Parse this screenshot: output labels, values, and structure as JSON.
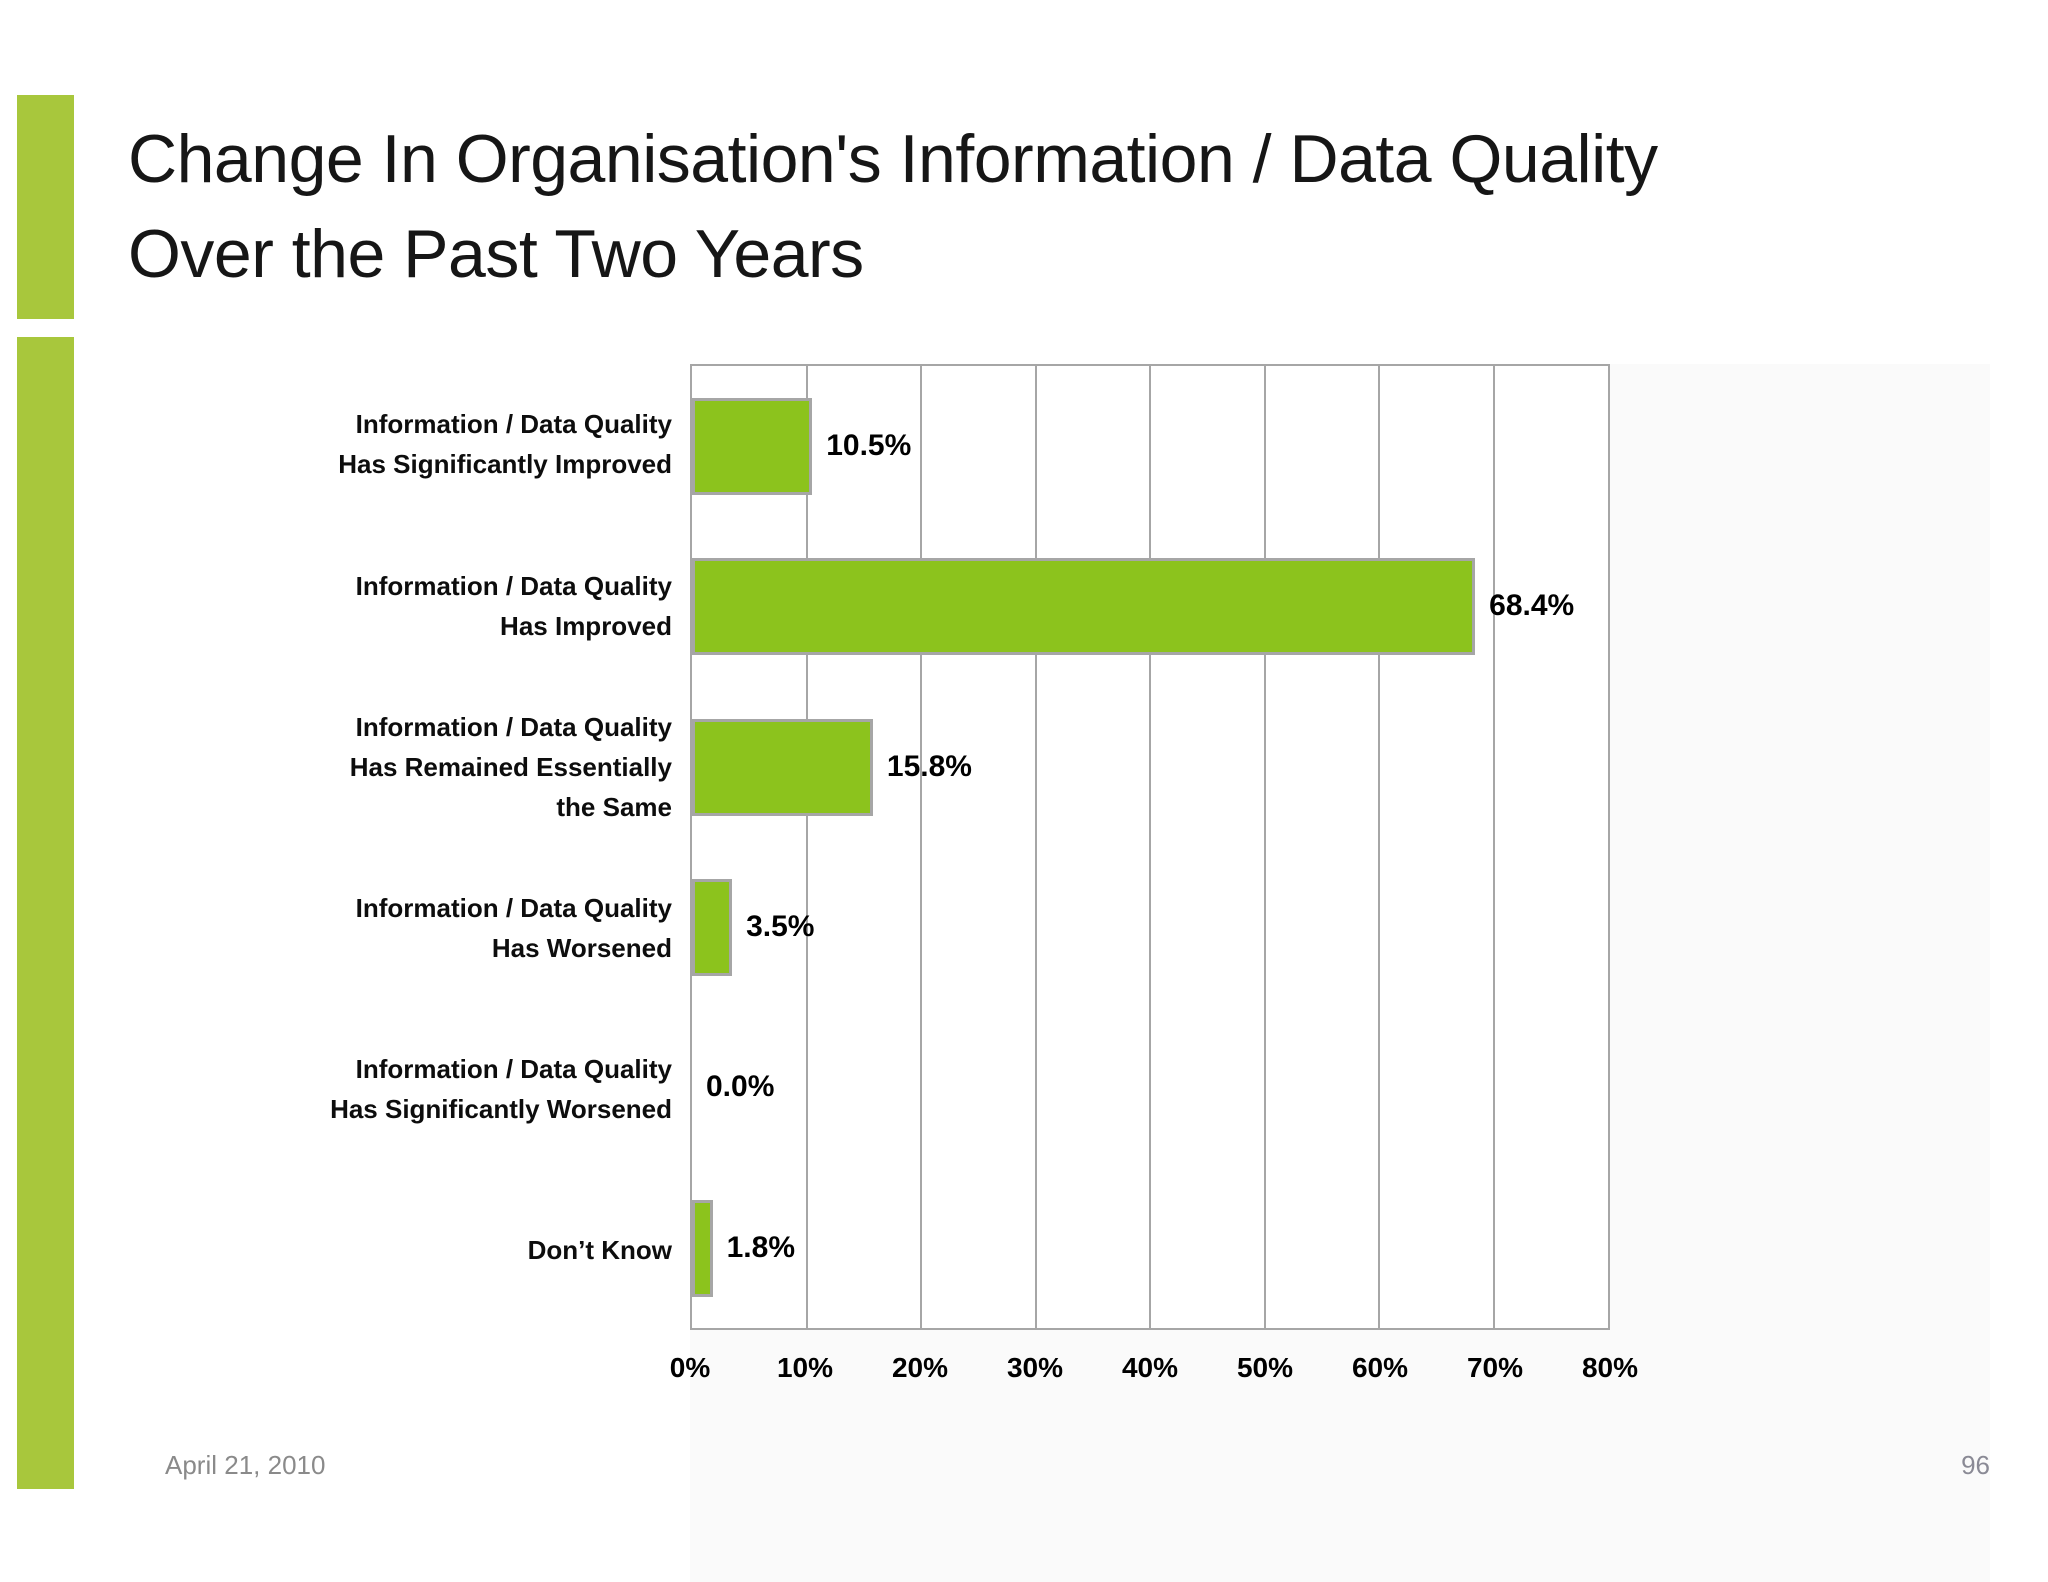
{
  "slide": {
    "title_line1": "Change In Organisation's Information / Data Quality",
    "title_line2": "Over the Past Two Years",
    "footer_date": "April 21, 2010",
    "page_number": "96"
  },
  "theme": {
    "accent_green": "#a8c73c",
    "title_color": "#161616",
    "footer_gray": "#8a8a8a"
  },
  "chart_data": {
    "type": "bar",
    "orientation": "horizontal",
    "title": "",
    "xlabel": "",
    "ylabel": "",
    "xlim": [
      0,
      80
    ],
    "grid": true,
    "legend": false,
    "categories": [
      [
        "Information / Data Quality",
        "Has Significantly Improved"
      ],
      [
        "Information / Data Quality",
        "Has Improved"
      ],
      [
        "Information / Data Quality",
        "Has Remained Essentially",
        "the Same"
      ],
      [
        "Information / Data Quality",
        "Has Worsened"
      ],
      [
        "Information / Data Quality",
        "Has Significantly Worsened"
      ],
      [
        "Don’t Know"
      ]
    ],
    "values": [
      10.5,
      68.4,
      15.8,
      3.5,
      0.0,
      1.8
    ],
    "value_labels": [
      "10.5%",
      "68.4%",
      "15.8%",
      "3.5%",
      "0.0%",
      "1.8%"
    ],
    "xtick_values": [
      0,
      10,
      20,
      30,
      40,
      50,
      60,
      70,
      80
    ],
    "xtick_labels": [
      "0%",
      "10%",
      "20%",
      "30%",
      "40%",
      "50%",
      "60%",
      "70%",
      "80%"
    ],
    "bar_color": "#8cc31d",
    "bar_border_color": "#a6a6a6",
    "gridline_color": "#a6a6a6"
  }
}
